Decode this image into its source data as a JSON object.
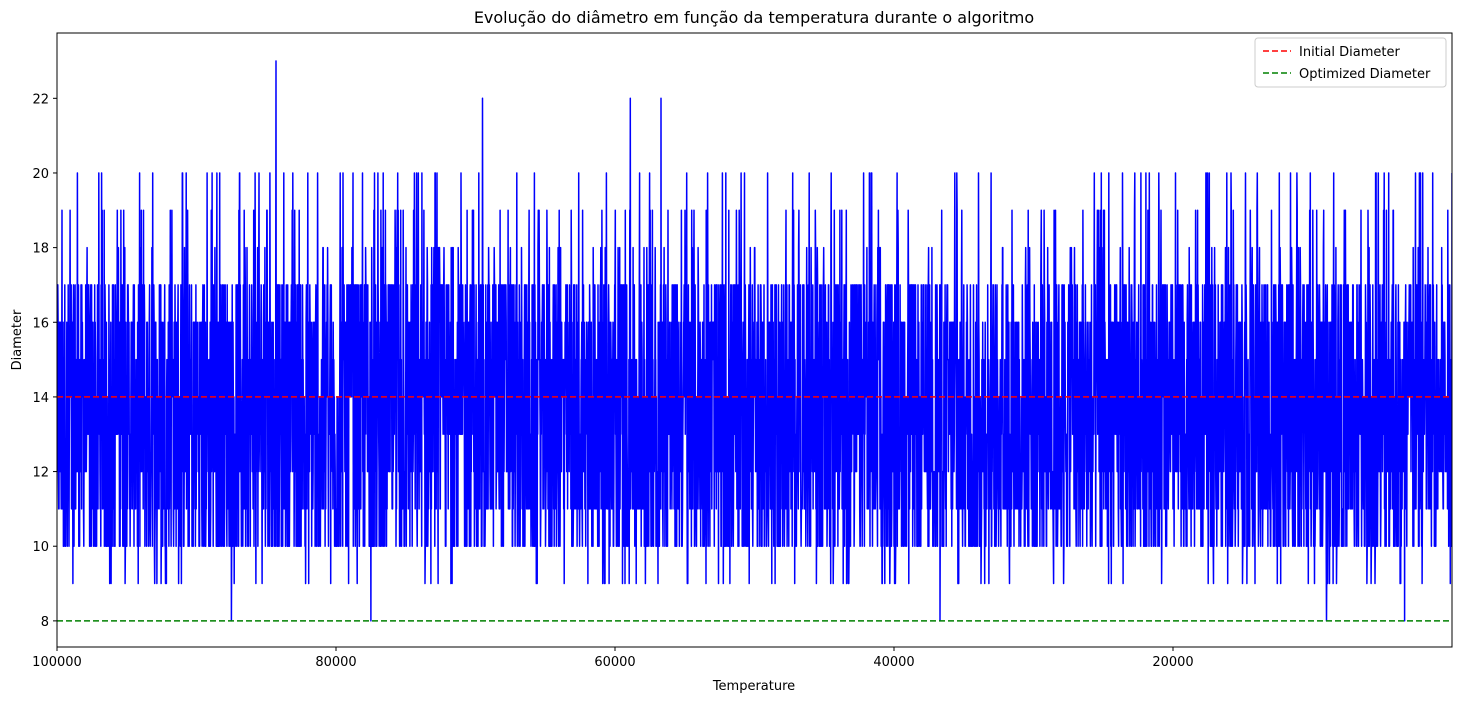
{
  "chart_data": {
    "type": "line",
    "title": "Evolução do diâmetro em função da temperatura durante o algoritmo",
    "xlabel": "Temperature",
    "ylabel": "Diameter",
    "xlim": [
      100000,
      0
    ],
    "x_reversed": true,
    "ylim": [
      7.3,
      23.75
    ],
    "xticks": [
      100000,
      80000,
      60000,
      40000,
      20000
    ],
    "yticks": [
      8,
      10,
      12,
      14,
      16,
      18,
      20,
      22
    ],
    "grid": false,
    "legend_position": "top-right",
    "series": [
      {
        "name": "",
        "color": "#0000ff",
        "style": "solid",
        "description": "diameter oscillating mostly between 10 and 18, occasional values 8-9 and 19-23",
        "x_start": 100000,
        "x_end": 0,
        "notable_points": [
          {
            "x": 87500,
            "y": 8
          },
          {
            "x": 84300,
            "y": 23
          },
          {
            "x": 69500,
            "y": 22
          },
          {
            "x": 56700,
            "y": 22
          },
          {
            "x": 58900,
            "y": 22
          },
          {
            "x": 77500,
            "y": 8
          },
          {
            "x": 36700,
            "y": 8
          },
          {
            "x": 9000,
            "y": 8
          },
          {
            "x": 3400,
            "y": 8
          },
          {
            "x": 0,
            "y": 20
          }
        ]
      },
      {
        "name": "Initial Diameter",
        "color": "#ff0000",
        "style": "dashed",
        "y": 14
      },
      {
        "name": "Optimized Diameter",
        "color": "#008000",
        "style": "dashed",
        "y": 8
      }
    ]
  }
}
